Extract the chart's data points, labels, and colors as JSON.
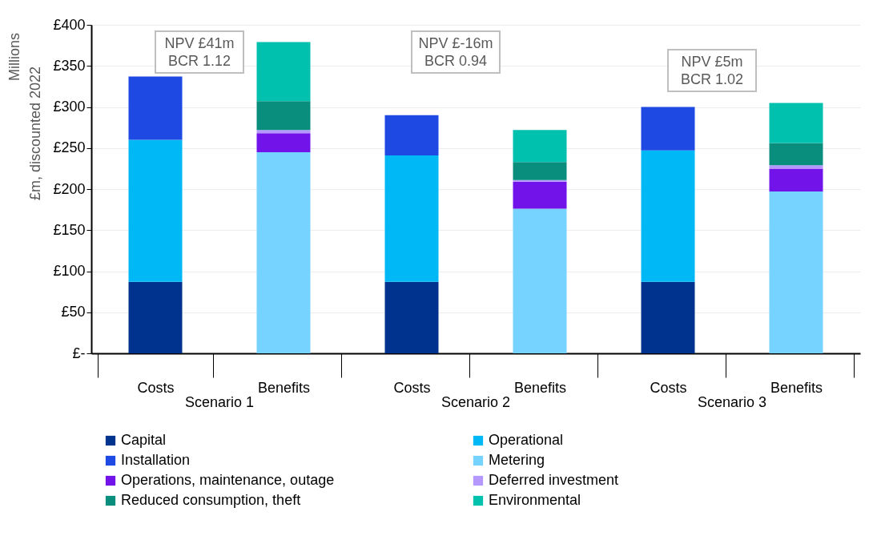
{
  "chart_data": {
    "type": "bar",
    "stacked": true,
    "ylabel": "£m, discounted 2022",
    "categories": [
      "Costs",
      "Benefits",
      "Costs",
      "Benefits",
      "Costs",
      "Benefits"
    ],
    "series": [
      {
        "name": "Capital",
        "color": "#00338d",
        "values": [
          87,
          null,
          87,
          null,
          87,
          null
        ]
      },
      {
        "name": "Operational",
        "color": "#00b8f5",
        "values": [
          173,
          null,
          154,
          null,
          160,
          null
        ]
      },
      {
        "name": "Installation",
        "color": "#1e49e2",
        "values": [
          77,
          null,
          49,
          null,
          53,
          null
        ]
      },
      {
        "name": "Metering",
        "color": "#76d2ff",
        "values": [
          null,
          245,
          null,
          176,
          null,
          197
        ]
      },
      {
        "name": "Operations, maintenance, outage",
        "color": "#7213ea",
        "values": [
          null,
          23,
          null,
          33,
          null,
          28
        ]
      },
      {
        "name": "Deferred investment",
        "color": "#b497ff",
        "values": [
          null,
          4,
          null,
          2,
          null,
          4
        ]
      },
      {
        "name": "Reduced consumption, theft",
        "color": "#098e7e",
        "values": [
          null,
          35,
          null,
          22,
          null,
          27
        ]
      },
      {
        "name": "Environmental",
        "color": "#00c0ae",
        "values": [
          null,
          72,
          null,
          39,
          null,
          49
        ]
      }
    ],
    "ylim": [
      0,
      400
    ],
    "yticks": [
      {
        "value": 0,
        "label": "£-"
      },
      {
        "value": 50,
        "label": "£50"
      },
      {
        "value": 100,
        "label": "£100"
      },
      {
        "value": 150,
        "label": "£150"
      },
      {
        "value": 200,
        "label": "£200"
      },
      {
        "value": 250,
        "label": "£250"
      },
      {
        "value": 300,
        "label": "£300"
      },
      {
        "value": 350,
        "label": "£350"
      },
      {
        "value": 400,
        "label": "£400"
      }
    ],
    "grid": "y",
    "legend": "bottom",
    "annotations": [
      "Scenario 1",
      "Scenario 2",
      "Scenario 3",
      "NPV £41m\nBCR 1.12",
      "NPV £-16m\nBCR 0.94",
      "NPV £5m\nBCR 1.02",
      "Millions"
    ]
  }
}
